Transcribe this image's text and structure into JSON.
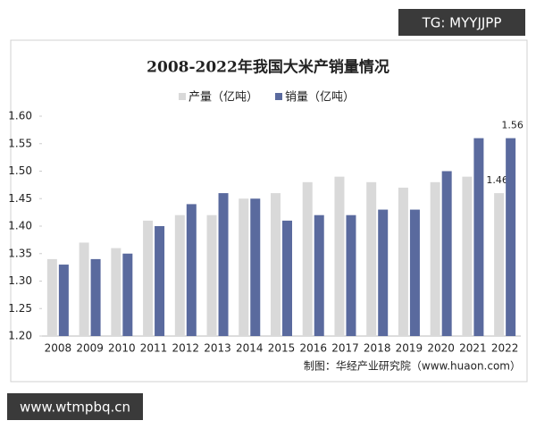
{
  "chart_data": {
    "type": "bar",
    "title": "2008-2022年我国大米产销量情况",
    "source": "制图：华经产业研究院（www.huaon.com）",
    "categories": [
      "2008",
      "2009",
      "2010",
      "2011",
      "2012",
      "2013",
      "2014",
      "2015",
      "2016",
      "2017",
      "2018",
      "2019",
      "2020",
      "2021",
      "2022"
    ],
    "series": [
      {
        "name": "产量（亿吨）",
        "color": "#d9d9d9",
        "values": [
          1.34,
          1.37,
          1.36,
          1.41,
          1.42,
          1.42,
          1.45,
          1.46,
          1.48,
          1.49,
          1.48,
          1.47,
          1.48,
          1.49,
          1.46
        ],
        "value_labels": [
          null,
          null,
          null,
          null,
          null,
          null,
          null,
          null,
          null,
          null,
          null,
          null,
          null,
          null,
          "1.46"
        ]
      },
      {
        "name": "销量（亿吨）",
        "color": "#5a6a9e",
        "values": [
          1.33,
          1.34,
          1.35,
          1.4,
          1.44,
          1.46,
          1.45,
          1.41,
          1.42,
          1.42,
          1.43,
          1.43,
          1.5,
          1.56,
          1.56
        ],
        "value_labels": [
          null,
          null,
          null,
          null,
          null,
          null,
          null,
          null,
          null,
          null,
          null,
          null,
          null,
          null,
          "1.56"
        ]
      }
    ],
    "ylim": [
      1.2,
      1.6
    ],
    "yticks": [
      {
        "value": 1.2,
        "label": "1.20"
      },
      1.25,
      {
        "value": 1.3,
        "label": "1.30"
      },
      1.35,
      {
        "value": 1.4,
        "label": "1.40"
      },
      1.45,
      {
        "value": 1.5,
        "label": "1.50"
      },
      1.55,
      {
        "value": 1.6,
        "label": "1.60"
      }
    ],
    "grid": false,
    "legend": "top"
  },
  "watermarks": {
    "top": "TG: MYYJJPP",
    "bottom": "www.wtmpbq.cn"
  }
}
